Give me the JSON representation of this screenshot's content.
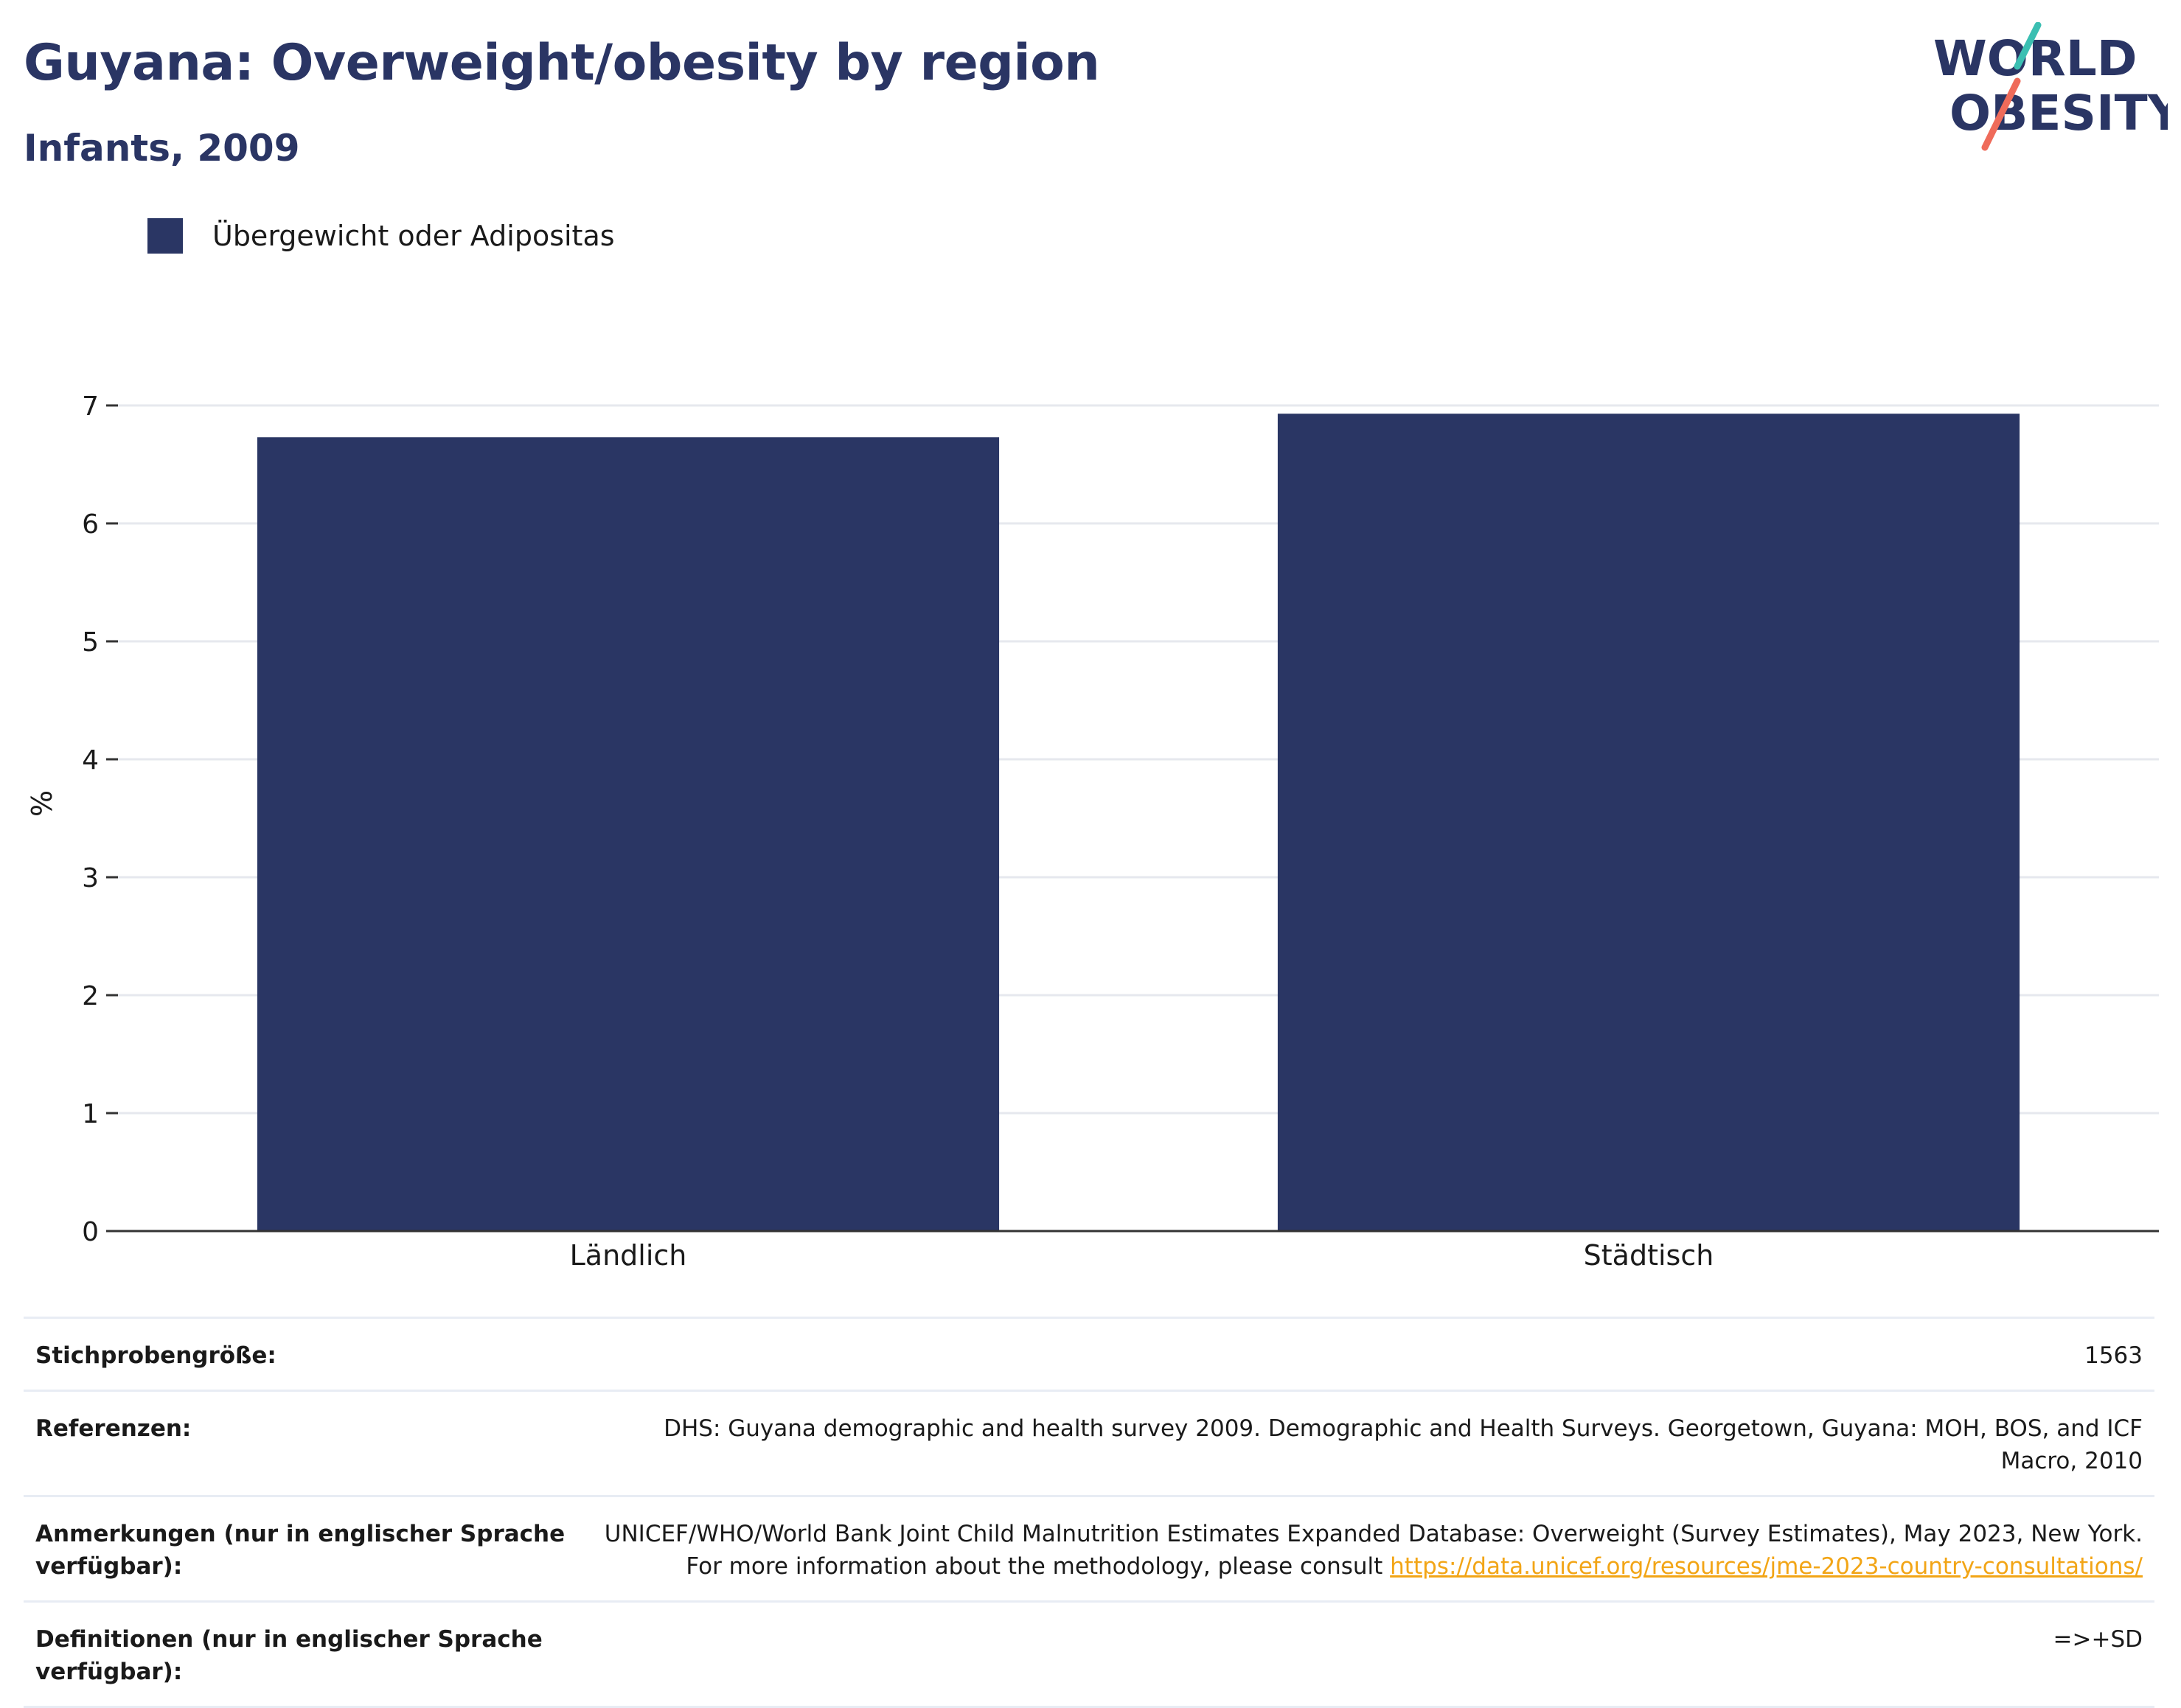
{
  "header": {
    "title": "Guyana: Overweight/obesity by region",
    "subtitle": "Infants, 2009"
  },
  "logo": {
    "line1": "WORLD",
    "line2": "OBESITY"
  },
  "chart_data": {
    "type": "bar",
    "categories": [
      "Ländlich",
      "Städtisch"
    ],
    "series": [
      {
        "name": "Übergewicht oder Adipositas",
        "values": [
          6.73,
          6.93
        ],
        "color": "#2a3664"
      }
    ],
    "ylabel": "%",
    "xlabel": "",
    "ylim": [
      0,
      7
    ],
    "yticks": [
      0,
      1,
      2,
      3,
      4,
      5,
      6,
      7
    ],
    "grid": true,
    "legend": "top-left"
  },
  "info": {
    "sample_size": {
      "label": "Stichprobengröße:",
      "value": "1563"
    },
    "references": {
      "label": "Referenzen:",
      "value": "DHS: Guyana demographic and health survey 2009. Demographic and Health Surveys. Georgetown, Guyana: MOH, BOS, and ICF Macro, 2010"
    },
    "notes": {
      "label": "Anmerkungen (nur in englischer Sprache verfügbar):",
      "value": "UNICEF/WHO/World Bank Joint Child Malnutrition Estimates Expanded Database: Overweight (Survey Estimates), May 2023, New York. For more information about the methodology, please consult",
      "link": "https://data.unicef.org/resources/jme-2023-country-consultations/"
    },
    "definitions": {
      "label": "Definitionen (nur in englischer Sprache verfügbar):",
      "value": "=>+SD"
    }
  },
  "colors": {
    "brand": "#2a3564",
    "bar": "#2a3664",
    "link": "#f2a516",
    "logo_teal": "#3bbfb2",
    "logo_coral": "#ef6b5a"
  }
}
